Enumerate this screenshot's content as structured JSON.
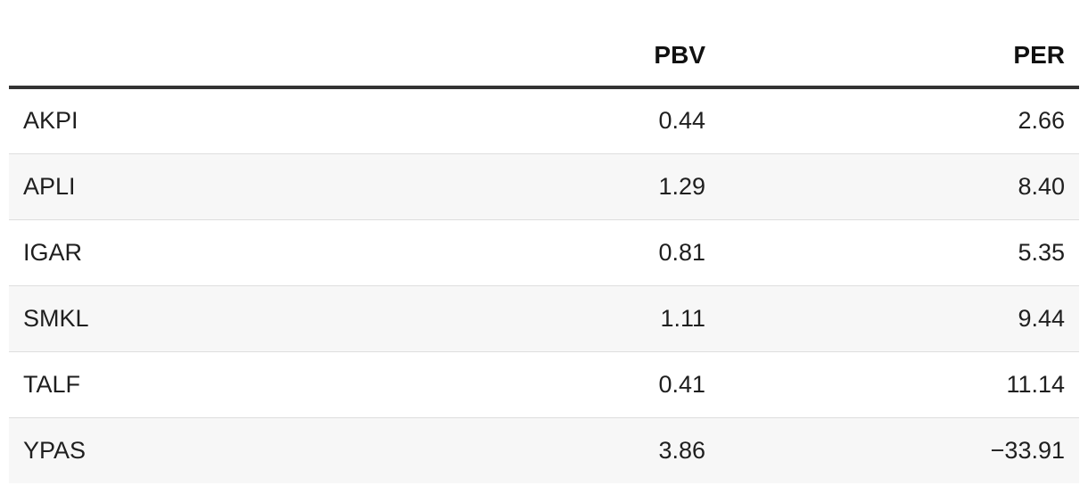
{
  "table": {
    "columns": [
      "",
      "PBV",
      "PER"
    ],
    "rows": [
      {
        "ticker": "AKPI",
        "pbv": "0.44",
        "per": "2.66"
      },
      {
        "ticker": "APLI",
        "pbv": "1.29",
        "per": "8.40"
      },
      {
        "ticker": "IGAR",
        "pbv": "0.81",
        "per": "5.35"
      },
      {
        "ticker": "SMKL",
        "pbv": "1.11",
        "per": "9.44"
      },
      {
        "ticker": "TALF",
        "pbv": "0.41",
        "per": "11.14"
      },
      {
        "ticker": "YPAS",
        "pbv": "3.86",
        "per": "−33.91"
      }
    ]
  },
  "colors": {
    "header_rule": "#333333",
    "stripe": "#f7f7f7",
    "row_divider": "#dedede",
    "text": "#212121"
  }
}
